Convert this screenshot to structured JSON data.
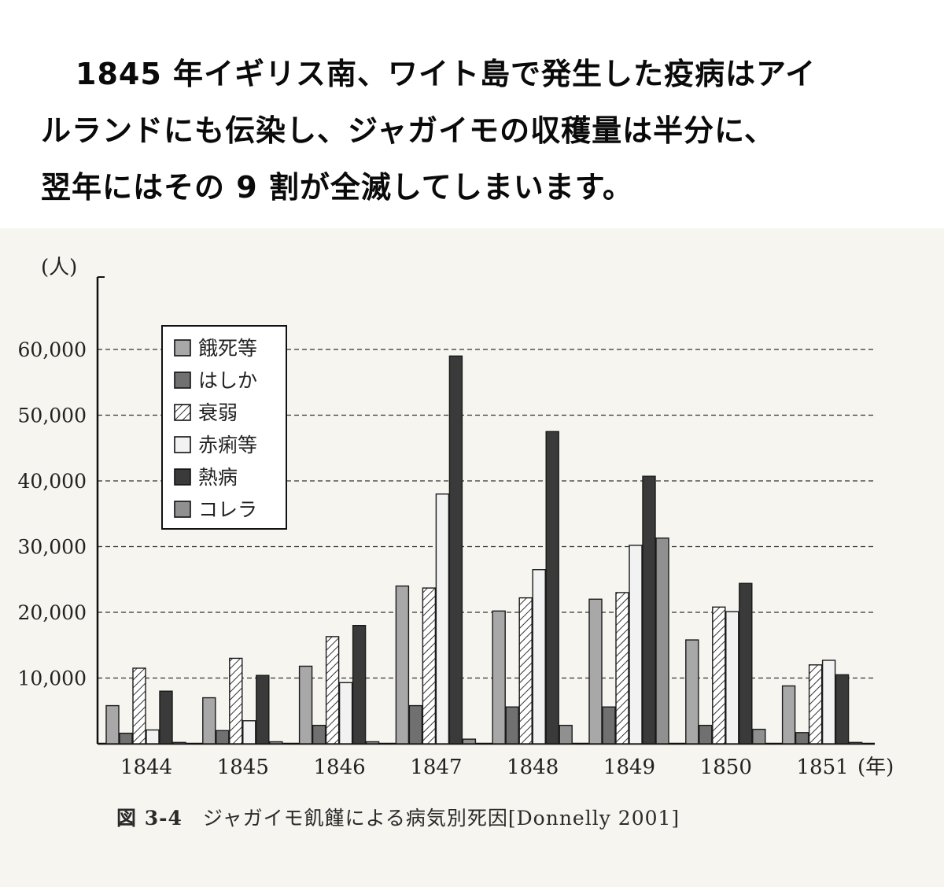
{
  "intro": {
    "line1": "1845 年イギリス南、ワイト島で発生した疫病はアイ",
    "line2": "ルランドにも伝染し、ジャガイモの収穫量は半分に、",
    "line3": "翌年にはその 9 割が全滅してしまいます。"
  },
  "caption": {
    "number": "図 3-4",
    "text": "ジャガイモ飢饉による病気別死因[Donnelly 2001]"
  },
  "chart_data": {
    "type": "bar",
    "ylabel": "(人)",
    "xlabel_unit": "(年)",
    "ylim": [
      0,
      70000
    ],
    "yticks": [
      10000,
      20000,
      30000,
      40000,
      50000,
      60000
    ],
    "ytick_labels": [
      "10,000",
      "20,000",
      "30,000",
      "40,000",
      "50,000",
      "60,000"
    ],
    "grid": "horizontal dashed",
    "legend_position": "top-left",
    "categories": [
      "1844",
      "1845",
      "1846",
      "1847",
      "1848",
      "1849",
      "1850",
      "1851"
    ],
    "series": [
      {
        "name": "餓死等",
        "color": "#a8a8a8",
        "pattern": "solid",
        "values": [
          5800,
          7000,
          11800,
          24000,
          20200,
          22000,
          15800,
          8800
        ]
      },
      {
        "name": "はしか",
        "color": "#707070",
        "pattern": "solid",
        "values": [
          1600,
          2000,
          2800,
          5800,
          5600,
          5600,
          2800,
          1700
        ]
      },
      {
        "name": "衰弱",
        "color": "#ffffff",
        "pattern": "hatch",
        "values": [
          11500,
          13000,
          16300,
          23700,
          22200,
          23000,
          20800,
          12000
        ]
      },
      {
        "name": "赤痢等",
        "color": "#f2f2f2",
        "pattern": "solid",
        "values": [
          2100,
          3500,
          9300,
          38000,
          26500,
          30200,
          20100,
          12700
        ]
      },
      {
        "name": "熱病",
        "color": "#3a3a3a",
        "pattern": "solid",
        "values": [
          8000,
          10400,
          18000,
          59000,
          47500,
          40700,
          24400,
          10500
        ]
      },
      {
        "name": "コレラ",
        "color": "#909090",
        "pattern": "solid",
        "values": [
          200,
          300,
          300,
          700,
          2800,
          31300,
          2200,
          200
        ]
      }
    ]
  }
}
